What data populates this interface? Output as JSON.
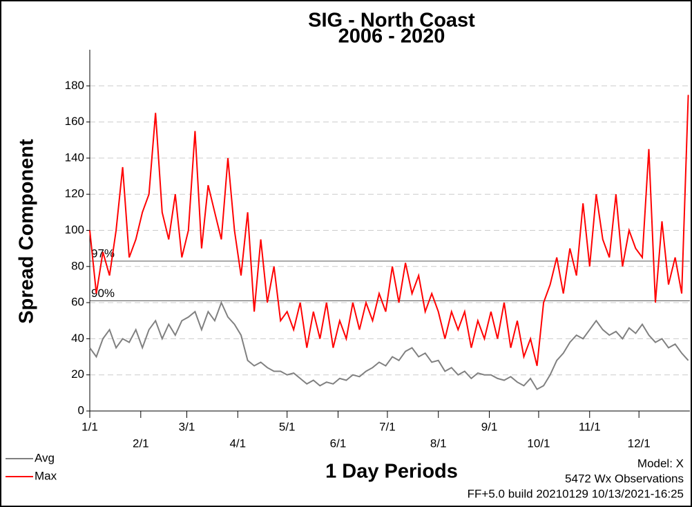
{
  "chart_data": {
    "type": "line",
    "title": "SIG - North Coast",
    "subtitle": "2006 - 2020",
    "y_label": "Spread Component",
    "x_label": "1 Day Periods",
    "annotations": [
      "Model: X",
      "5472 Wx Observations",
      "FF+5.0 build 20210129 10/13/2021-16:25"
    ],
    "x": [
      1,
      5,
      9,
      13,
      17,
      21,
      25,
      29,
      33,
      37,
      41,
      45,
      49,
      53,
      57,
      61,
      65,
      69,
      73,
      77,
      81,
      85,
      89,
      93,
      97,
      101,
      105,
      109,
      113,
      117,
      121,
      125,
      129,
      133,
      137,
      141,
      145,
      149,
      153,
      157,
      161,
      165,
      169,
      173,
      177,
      181,
      185,
      189,
      193,
      197,
      201,
      205,
      209,
      213,
      217,
      221,
      225,
      229,
      233,
      237,
      241,
      245,
      249,
      253,
      257,
      261,
      265,
      269,
      273,
      277,
      281,
      285,
      289,
      293,
      297,
      301,
      305,
      309,
      313,
      317,
      321,
      325,
      329,
      333,
      337,
      341,
      345,
      349,
      353,
      357,
      361,
      365
    ],
    "series": [
      {
        "name": "Avg",
        "color": "#808080",
        "values": [
          35,
          30,
          40,
          45,
          35,
          40,
          38,
          45,
          35,
          45,
          50,
          40,
          48,
          42,
          50,
          52,
          55,
          45,
          55,
          50,
          60,
          52,
          48,
          42,
          28,
          25,
          27,
          24,
          22,
          22,
          20,
          21,
          18,
          15,
          17,
          14,
          16,
          15,
          18,
          17,
          20,
          19,
          22,
          24,
          27,
          25,
          30,
          28,
          33,
          35,
          30,
          32,
          27,
          28,
          22,
          24,
          20,
          22,
          18,
          21,
          20,
          20,
          18,
          17,
          19,
          16,
          14,
          18,
          12,
          14,
          20,
          28,
          32,
          38,
          42,
          40,
          45,
          50,
          45,
          42,
          44,
          40,
          46,
          43,
          48,
          42,
          38,
          40,
          35,
          37,
          32,
          28
        ]
      },
      {
        "name": "Max",
        "color": "#ff0000",
        "values": [
          100,
          65,
          88,
          75,
          100,
          135,
          85,
          95,
          110,
          120,
          165,
          110,
          95,
          120,
          85,
          100,
          155,
          90,
          125,
          110,
          95,
          140,
          100,
          75,
          110,
          55,
          95,
          60,
          80,
          50,
          55,
          45,
          60,
          35,
          55,
          40,
          60,
          35,
          50,
          40,
          60,
          45,
          60,
          50,
          65,
          55,
          80,
          60,
          82,
          65,
          75,
          55,
          65,
          55,
          40,
          55,
          45,
          55,
          35,
          50,
          40,
          55,
          40,
          60,
          35,
          50,
          30,
          40,
          25,
          60,
          70,
          85,
          65,
          90,
          75,
          115,
          80,
          120,
          95,
          85,
          120,
          80,
          100,
          90,
          85,
          145,
          60,
          105,
          70,
          85,
          65,
          175
        ]
      }
    ],
    "xlim": [
      1,
      366
    ],
    "xticks": [
      {
        "value": 1,
        "label": "1/1"
      },
      {
        "value": 32,
        "label": "2/1"
      },
      {
        "value": 60,
        "label": "3/1"
      },
      {
        "value": 91,
        "label": "4/1"
      },
      {
        "value": 121,
        "label": "5/1"
      },
      {
        "value": 152,
        "label": "6/1"
      },
      {
        "value": 182,
        "label": "7/1"
      },
      {
        "value": 213,
        "label": "8/1"
      },
      {
        "value": 244,
        "label": "9/1"
      },
      {
        "value": 274,
        "label": "10/1"
      },
      {
        "value": 305,
        "label": "11/1"
      },
      {
        "value": 335,
        "label": "12/1"
      }
    ],
    "ylim": [
      0,
      200
    ],
    "yticks": [
      0,
      20,
      40,
      60,
      80,
      100,
      120,
      140,
      160,
      180
    ],
    "reference_lines": [
      {
        "value": 83,
        "label": "97%"
      },
      {
        "value": 61,
        "label": "90%"
      }
    ],
    "grid": true
  }
}
